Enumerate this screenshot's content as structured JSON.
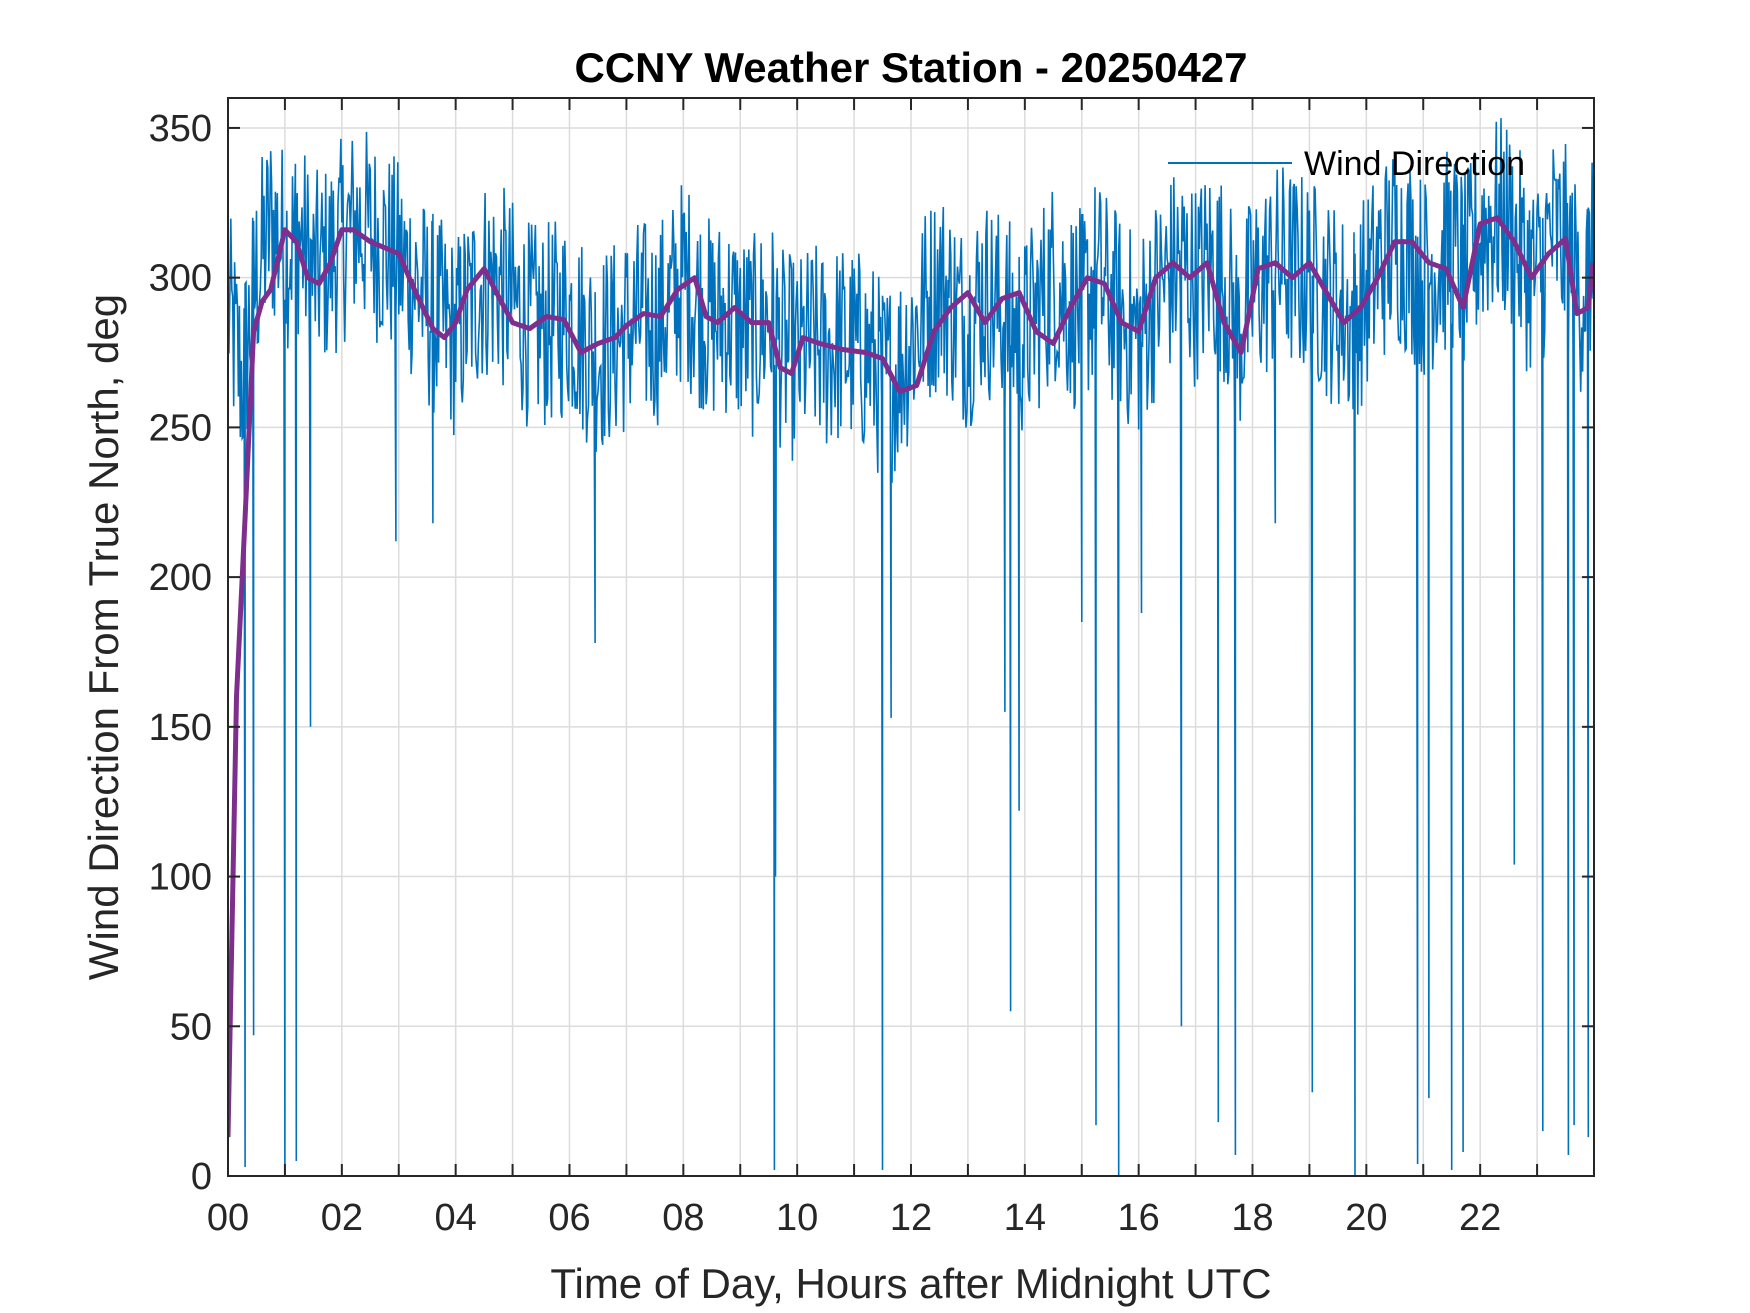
{
  "chart_data": {
    "type": "line",
    "title": "CCNY Weather Station - 20250427",
    "xlabel": "Time of Day, Hours after Midnight UTC",
    "ylabel": "Wind Direction From True North, deg",
    "xlim": [
      0,
      24
    ],
    "ylim": [
      0,
      360
    ],
    "x_ticks": [
      0,
      2,
      4,
      6,
      8,
      10,
      12,
      14,
      16,
      18,
      20,
      22
    ],
    "x_tick_labels": [
      "00",
      "02",
      "04",
      "06",
      "08",
      "10",
      "12",
      "14",
      "16",
      "18",
      "20",
      "22"
    ],
    "y_ticks": [
      0,
      50,
      100,
      150,
      200,
      250,
      300,
      350
    ],
    "y_tick_labels": [
      "0",
      "50",
      "100",
      "150",
      "200",
      "250",
      "300",
      "350"
    ],
    "grid": true,
    "legend_position": "top-right",
    "series": [
      {
        "name": "Wind Direction",
        "color": "#0072BD",
        "style": "thin",
        "x": [
          0.0,
          0.25,
          0.5,
          0.75,
          1.0,
          1.25,
          1.5,
          1.75,
          2.0,
          2.25,
          2.5,
          2.75,
          3.0,
          3.25,
          3.5,
          3.75,
          4.0,
          4.25,
          4.5,
          4.75,
          5.0,
          5.25,
          5.5,
          5.75,
          6.0,
          6.25,
          6.5,
          6.75,
          7.0,
          7.25,
          7.5,
          7.75,
          8.0,
          8.25,
          8.5,
          8.75,
          9.0,
          9.25,
          9.5,
          9.75,
          10.0,
          10.25,
          10.5,
          10.75,
          11.0,
          11.25,
          11.5,
          11.75,
          12.0,
          12.25,
          12.5,
          12.75,
          13.0,
          13.25,
          13.5,
          13.75,
          14.0,
          14.25,
          14.5,
          14.75,
          15.0,
          15.25,
          15.5,
          15.75,
          16.0,
          16.25,
          16.5,
          16.75,
          17.0,
          17.25,
          17.5,
          17.75,
          18.0,
          18.25,
          18.5,
          18.75,
          19.0,
          19.25,
          19.5,
          19.75,
          20.0,
          20.25,
          20.5,
          20.75,
          21.0,
          21.25,
          21.5,
          21.75,
          22.0,
          22.25,
          22.5,
          22.75,
          23.0,
          23.25,
          23.5,
          23.75,
          23.98
        ],
        "y": [
          290,
          265,
          300,
          318,
          310,
          315,
          300,
          305,
          312,
          318,
          315,
          310,
          305,
          300,
          290,
          285,
          280,
          290,
          300,
          298,
          292,
          285,
          283,
          285,
          288,
          280,
          275,
          278,
          282,
          286,
          284,
          290,
          300,
          292,
          285,
          288,
          283,
          280,
          288,
          275,
          272,
          278,
          275,
          278,
          276,
          274,
          265,
          268,
          280,
          290,
          298,
          290,
          283,
          295,
          290,
          285,
          280,
          290,
          300,
          292,
          288,
          300,
          292,
          285,
          280,
          292,
          300,
          305,
          298,
          305,
          300,
          280,
          295,
          300,
          305,
          302,
          300,
          295,
          290,
          285,
          295,
          305,
          312,
          308,
          300,
          305,
          310,
          300,
          315,
          320,
          318,
          305,
          300,
          315,
          310,
          295,
          305
        ],
        "spikes": [
          {
            "x": 0.3,
            "y": 3
          },
          {
            "x": 0.45,
            "y": 47
          },
          {
            "x": 1.0,
            "y": 0
          },
          {
            "x": 1.2,
            "y": 5
          },
          {
            "x": 1.45,
            "y": 150
          },
          {
            "x": 2.95,
            "y": 212
          },
          {
            "x": 3.6,
            "y": 218
          },
          {
            "x": 6.45,
            "y": 178
          },
          {
            "x": 9.6,
            "y": 2
          },
          {
            "x": 9.62,
            "y": 100
          },
          {
            "x": 11.5,
            "y": 2
          },
          {
            "x": 11.65,
            "y": 153
          },
          {
            "x": 13.65,
            "y": 155
          },
          {
            "x": 13.75,
            "y": 55
          },
          {
            "x": 13.9,
            "y": 122
          },
          {
            "x": 15.0,
            "y": 185
          },
          {
            "x": 15.25,
            "y": 17
          },
          {
            "x": 15.65,
            "y": 0
          },
          {
            "x": 16.05,
            "y": 188
          },
          {
            "x": 16.75,
            "y": 50
          },
          {
            "x": 17.4,
            "y": 18
          },
          {
            "x": 17.7,
            "y": 7
          },
          {
            "x": 18.4,
            "y": 218
          },
          {
            "x": 19.05,
            "y": 28
          },
          {
            "x": 19.8,
            "y": 0
          },
          {
            "x": 20.9,
            "y": 4
          },
          {
            "x": 21.1,
            "y": 26
          },
          {
            "x": 21.5,
            "y": 2
          },
          {
            "x": 21.7,
            "y": 8
          },
          {
            "x": 22.6,
            "y": 104
          },
          {
            "x": 23.1,
            "y": 15
          },
          {
            "x": 23.55,
            "y": 7
          },
          {
            "x": 23.65,
            "y": 17
          },
          {
            "x": 23.9,
            "y": 13
          }
        ]
      },
      {
        "color": "#7E2F8E",
        "style": "thick",
        "x": [
          0.0,
          0.15,
          0.3,
          0.45,
          0.6,
          0.75,
          1.0,
          1.2,
          1.4,
          1.6,
          1.8,
          2.0,
          2.2,
          2.5,
          3.0,
          3.3,
          3.6,
          3.8,
          4.0,
          4.2,
          4.5,
          4.8,
          5.0,
          5.3,
          5.6,
          5.9,
          6.2,
          6.5,
          6.8,
          7.0,
          7.3,
          7.6,
          7.9,
          8.2,
          8.4,
          8.6,
          8.9,
          9.2,
          9.5,
          9.7,
          9.9,
          10.1,
          10.4,
          10.8,
          11.2,
          11.5,
          11.8,
          12.1,
          12.4,
          12.7,
          13.0,
          13.3,
          13.6,
          13.9,
          14.2,
          14.5,
          14.8,
          15.1,
          15.4,
          15.7,
          16.0,
          16.3,
          16.6,
          16.9,
          17.2,
          17.5,
          17.8,
          18.1,
          18.4,
          18.7,
          19.0,
          19.3,
          19.6,
          19.9,
          20.2,
          20.5,
          20.8,
          21.1,
          21.4,
          21.7,
          22.0,
          22.3,
          22.6,
          22.9,
          23.2,
          23.5,
          23.7,
          23.9,
          23.98
        ],
        "y": [
          13,
          160,
          220,
          282,
          292,
          296,
          316,
          312,
          300,
          298,
          305,
          316,
          316,
          312,
          308,
          295,
          283,
          280,
          285,
          296,
          303,
          292,
          285,
          283,
          287,
          286,
          275,
          278,
          280,
          284,
          288,
          287,
          296,
          300,
          287,
          285,
          290,
          285,
          285,
          270,
          268,
          280,
          278,
          276,
          275,
          273,
          262,
          264,
          282,
          290,
          295,
          285,
          293,
          295,
          282,
          278,
          290,
          300,
          298,
          285,
          282,
          300,
          305,
          300,
          305,
          285,
          275,
          303,
          305,
          300,
          305,
          295,
          285,
          290,
          300,
          312,
          312,
          305,
          303,
          290,
          318,
          320,
          312,
          300,
          308,
          313,
          288,
          290,
          305
        ]
      }
    ]
  }
}
